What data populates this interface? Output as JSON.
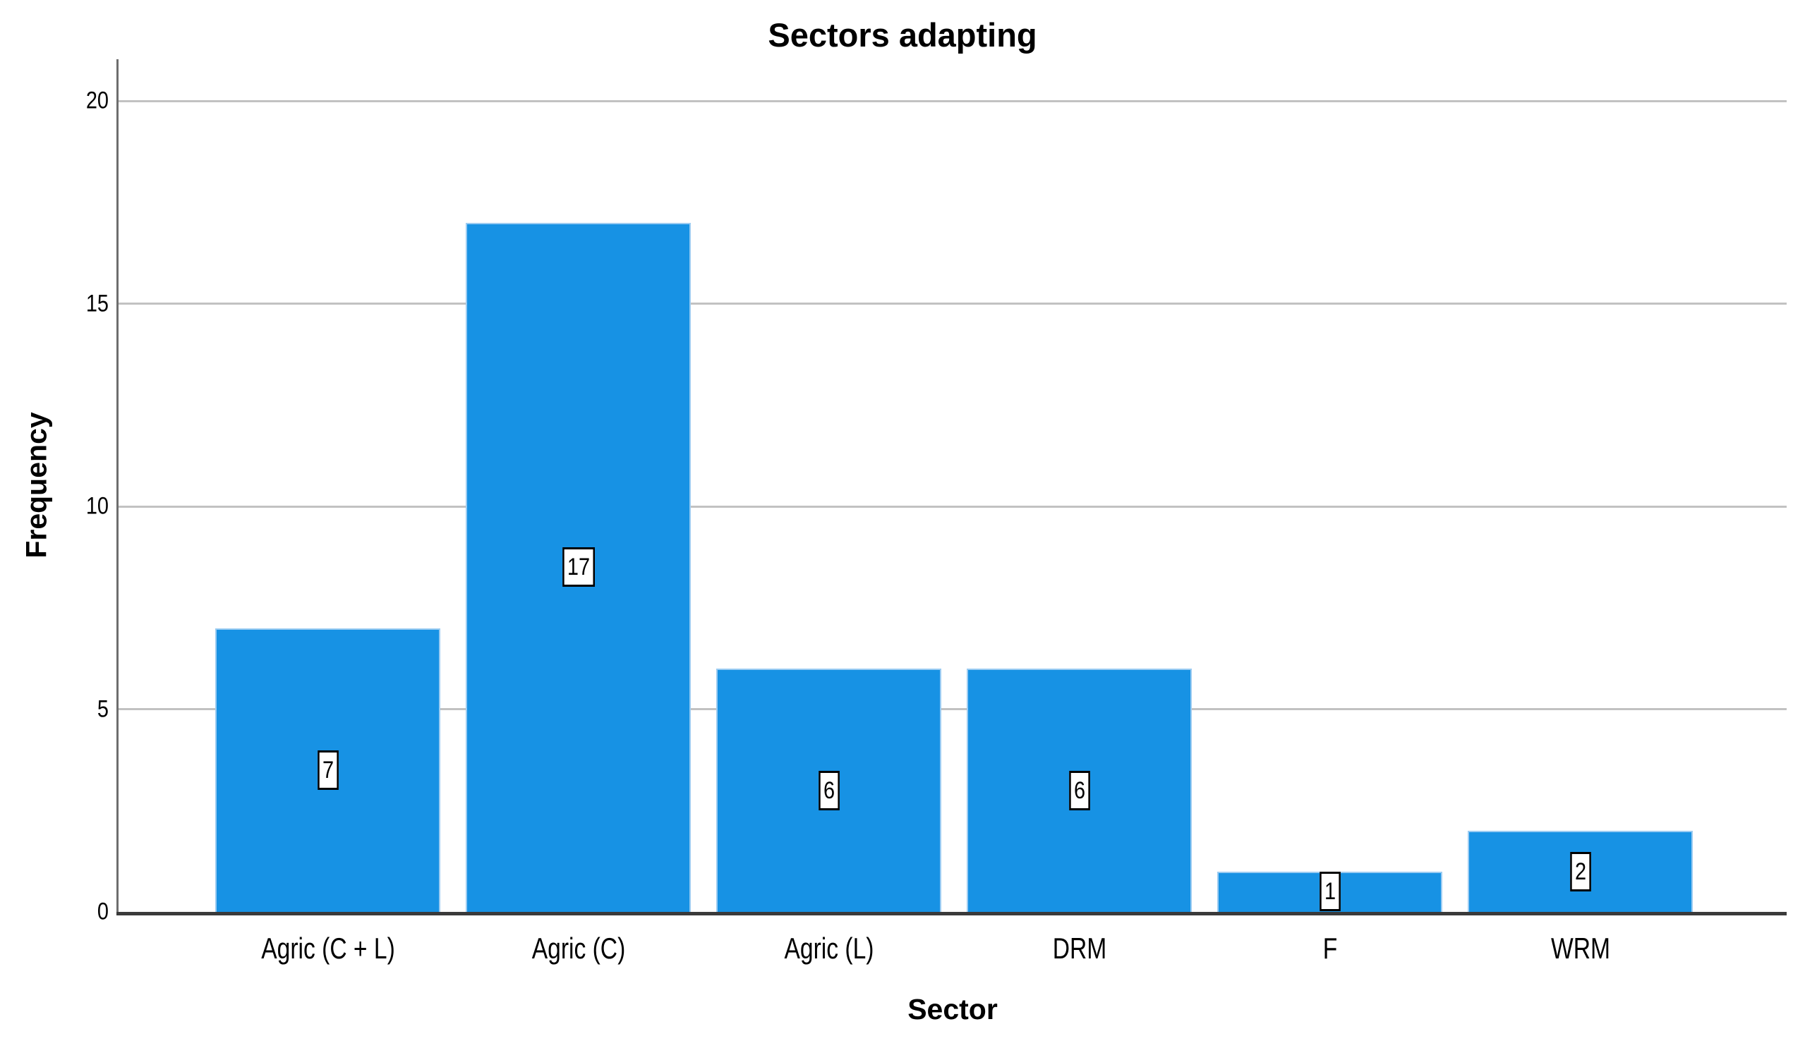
{
  "chart_data": {
    "type": "bar",
    "title": "Sectors adapting",
    "xlabel": "Sector",
    "ylabel": "Frequency",
    "categories": [
      "Agric (C + L)",
      "Agric (C)",
      "Agric (L)",
      "DRM",
      "F",
      "WRM"
    ],
    "values": [
      7,
      17,
      6,
      6,
      1,
      2
    ],
    "yticks": [
      0,
      5,
      10,
      15,
      20
    ],
    "ylim": [
      0,
      21
    ],
    "grid": "horizontal-only",
    "legend": "none",
    "value_label_style": "boxed-white-black-border",
    "colors": {
      "bar_fill": "#1792e4",
      "bar_edge": "#9cccf2",
      "gridline": "#c2c2c2",
      "y_axis_line": "#6e6e6e",
      "x_axis_line": "#3a3a3a",
      "text": "#000000",
      "background": "#ffffff"
    }
  }
}
